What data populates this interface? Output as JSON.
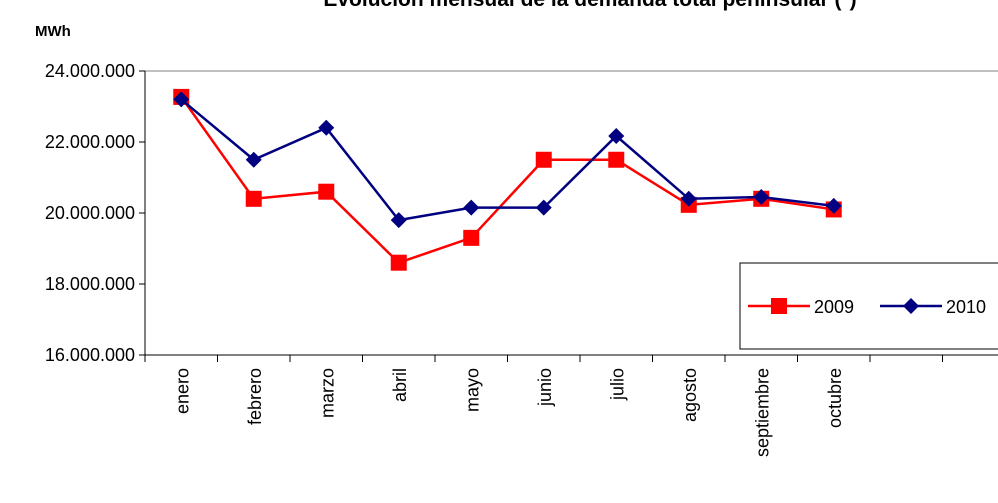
{
  "chart_data": {
    "type": "line",
    "title": "Evolución mensual de la demanda total peninsular (*)",
    "y_label": "MWh",
    "categories": [
      "enero",
      "febrero",
      "marzo",
      "abril",
      "mayo",
      "junio",
      "julio",
      "agosto",
      "septiembre",
      "octubre",
      null,
      null
    ],
    "series": [
      {
        "name": "2009",
        "color": "#ff0000",
        "marker": "square",
        "values": [
          23270000,
          20400000,
          20600000,
          18600000,
          19300000,
          21500000,
          21500000,
          20230000,
          20400000,
          20100000,
          null,
          null
        ]
      },
      {
        "name": "2010",
        "color": "#000080",
        "marker": "diamond",
        "values": [
          23200000,
          21500000,
          22400000,
          19800000,
          20150000,
          20150000,
          22170000,
          20400000,
          20450000,
          20200000,
          null,
          null
        ]
      }
    ],
    "ylim": [
      16000000,
      24000000
    ],
    "yticks": [
      {
        "value": 16000000,
        "label": "16.000.000"
      },
      {
        "value": 18000000,
        "label": "18.000.000"
      },
      {
        "value": 20000000,
        "label": "20.000.000"
      },
      {
        "value": 22000000,
        "label": "22.000.000"
      },
      {
        "value": 24000000,
        "label": "24.000.000"
      }
    ],
    "grid": false,
    "legend": "lower right"
  }
}
